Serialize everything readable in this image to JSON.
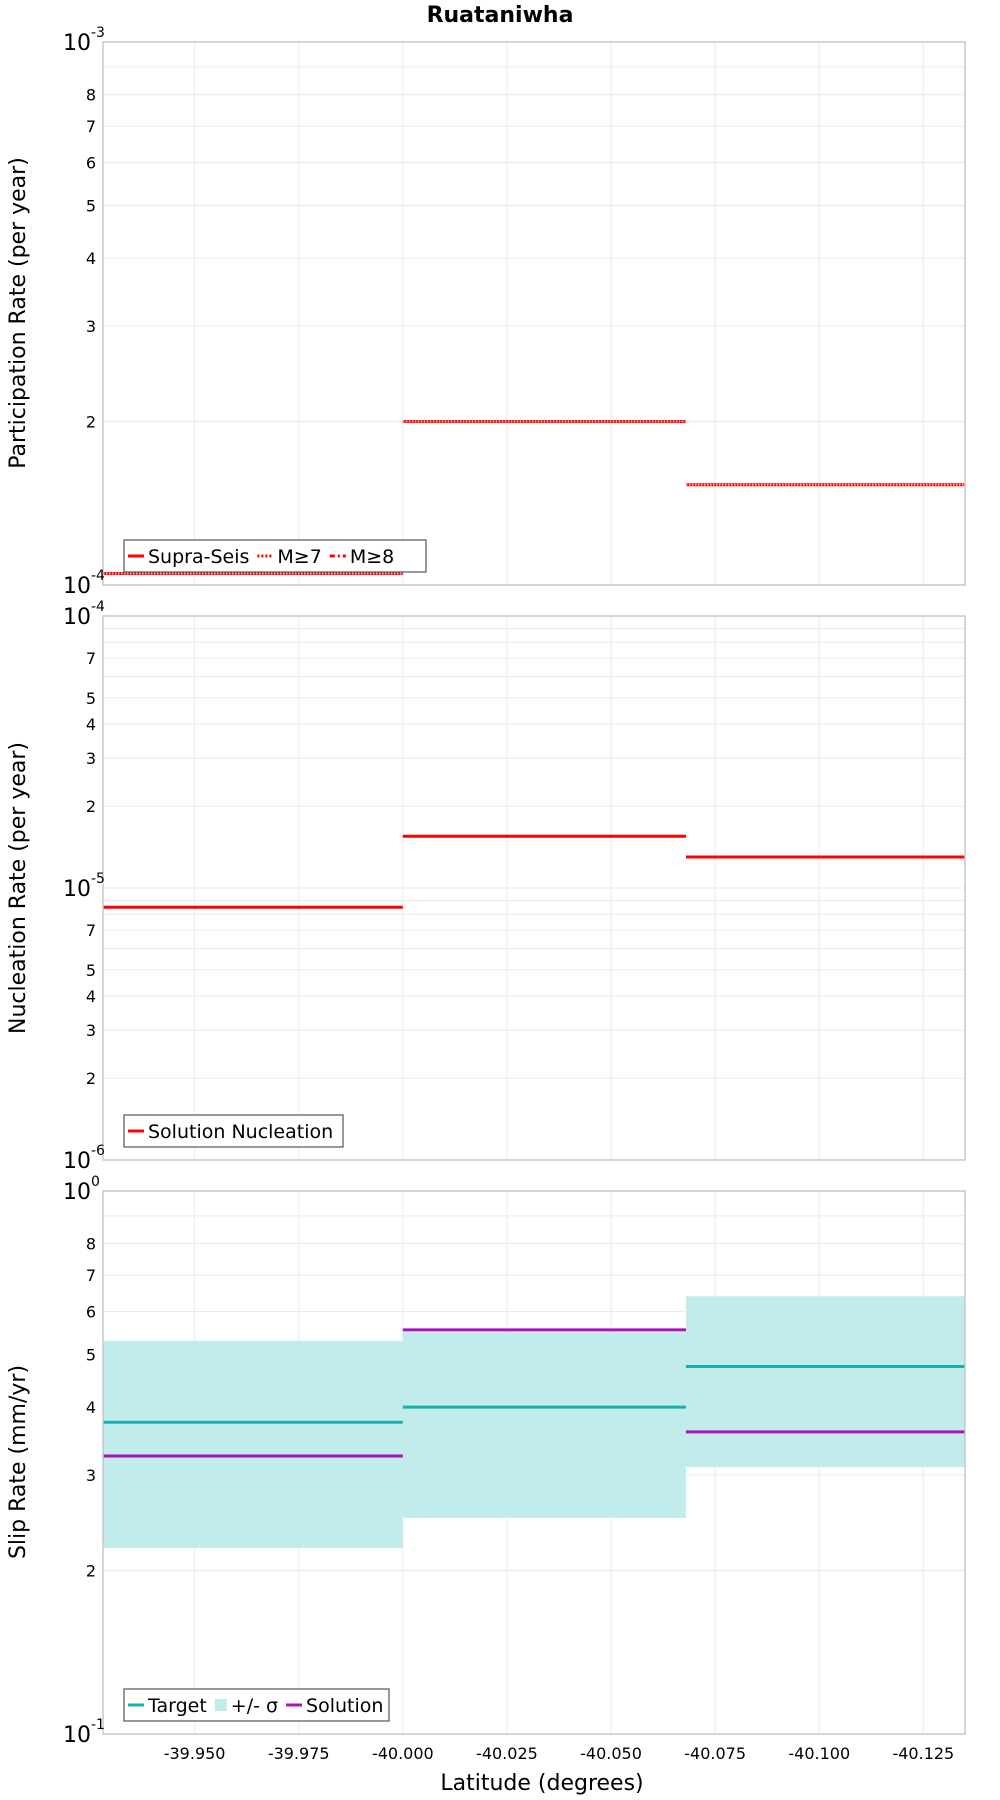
{
  "chart_data": [
    {
      "type": "line",
      "title": "Ruataniwha",
      "ylabel": "Participation Rate (per year)",
      "xlabel": "",
      "xlim": [
        -39.928,
        -40.135
      ],
      "ylim": [
        0.0001,
        0.001
      ],
      "yscale": "log",
      "grid": true,
      "legend_position": "bottom-left",
      "y_tick_labels": [
        {
          "value": 0.001,
          "mant": "10",
          "exp": "-3"
        },
        {
          "value": 0.0008,
          "mant": "8"
        },
        {
          "value": 0.0007,
          "mant": "7"
        },
        {
          "value": 0.0006,
          "mant": "6"
        },
        {
          "value": 0.0005,
          "mant": "5"
        },
        {
          "value": 0.0004,
          "mant": "4"
        },
        {
          "value": 0.0003,
          "mant": "3"
        },
        {
          "value": 0.0002,
          "mant": "2"
        },
        {
          "value": 0.0001,
          "mant": "10",
          "exp": "-4"
        }
      ],
      "series": [
        {
          "name": "Supra-Seis",
          "color": "#ff0000",
          "style": "solid",
          "segments": [
            {
              "x": [
                -39.928,
                -40.0
              ],
              "y": 0.000105
            },
            {
              "x": [
                -40.0,
                -40.068
              ],
              "y": 0.0002
            },
            {
              "x": [
                -40.068,
                -40.135
              ],
              "y": 0.000153
            }
          ]
        },
        {
          "name": "M≥7",
          "color": "#ff0000",
          "style": "dotted",
          "segments": [
            {
              "x": [
                -39.928,
                -40.0
              ],
              "y": 0.000105
            },
            {
              "x": [
                -40.0,
                -40.068
              ],
              "y": 0.0002
            },
            {
              "x": [
                -40.068,
                -40.135
              ],
              "y": 0.000153
            }
          ]
        },
        {
          "name": "M≥8",
          "color": "#ff0000",
          "style": "dashdot",
          "segments": []
        }
      ]
    },
    {
      "type": "line",
      "ylabel": "Nucleation Rate (per year)",
      "xlabel": "",
      "xlim": [
        -39.928,
        -40.135
      ],
      "ylim": [
        1e-06,
        0.0001
      ],
      "yscale": "log",
      "grid": true,
      "legend_position": "bottom-left",
      "y_tick_labels": [
        {
          "value": 0.0001,
          "mant": "10",
          "exp": "-4"
        },
        {
          "value": 7e-05,
          "mant": "7"
        },
        {
          "value": 5e-05,
          "mant": "5"
        },
        {
          "value": 4e-05,
          "mant": "4"
        },
        {
          "value": 3e-05,
          "mant": "3"
        },
        {
          "value": 2e-05,
          "mant": "2"
        },
        {
          "value": 1e-05,
          "mant": "10",
          "exp": "-5"
        },
        {
          "value": 7e-06,
          "mant": "7"
        },
        {
          "value": 5e-06,
          "mant": "5"
        },
        {
          "value": 4e-06,
          "mant": "4"
        },
        {
          "value": 3e-06,
          "mant": "3"
        },
        {
          "value": 2e-06,
          "mant": "2"
        },
        {
          "value": 1e-06,
          "mant": "10",
          "exp": "-6"
        }
      ],
      "series": [
        {
          "name": "Solution Nucleation",
          "color": "#ff0000",
          "style": "solid",
          "segments": [
            {
              "x": [
                -39.928,
                -40.0
              ],
              "y": 8.5e-06
            },
            {
              "x": [
                -40.0,
                -40.068
              ],
              "y": 1.55e-05
            },
            {
              "x": [
                -40.068,
                -40.135
              ],
              "y": 1.3e-05
            }
          ]
        }
      ]
    },
    {
      "type": "line",
      "ylabel": "Slip Rate (mm/yr)",
      "xlabel": "Latitude (degrees)",
      "xlim": [
        -39.928,
        -40.135
      ],
      "ylim": [
        0.1,
        1
      ],
      "yscale": "log",
      "grid": true,
      "legend_position": "bottom-left",
      "y_tick_labels": [
        {
          "value": 1,
          "mant": "10",
          "exp": "0"
        },
        {
          "value": 0.8,
          "mant": "8"
        },
        {
          "value": 0.7,
          "mant": "7"
        },
        {
          "value": 0.6,
          "mant": "6"
        },
        {
          "value": 0.5,
          "mant": "5"
        },
        {
          "value": 0.4,
          "mant": "4"
        },
        {
          "value": 0.3,
          "mant": "3"
        },
        {
          "value": 0.2,
          "mant": "2"
        },
        {
          "value": 0.1,
          "mant": "10",
          "exp": "-1"
        }
      ],
      "x_ticks": [
        -39.95,
        -39.975,
        -40.0,
        -40.025,
        -40.05,
        -40.075,
        -40.1,
        -40.125
      ],
      "x_tick_labels": [
        "-39.950",
        "-39.975",
        "-40.000",
        "-40.025",
        "-40.050",
        "-40.075",
        "-40.100",
        "-40.125"
      ],
      "series": [
        {
          "name": "Target",
          "color": "#1aafaf",
          "style": "solid",
          "segments": [
            {
              "x": [
                -39.928,
                -40.0
              ],
              "y": 0.375
            },
            {
              "x": [
                -40.0,
                -40.068
              ],
              "y": 0.4
            },
            {
              "x": [
                -40.068,
                -40.135
              ],
              "y": 0.475
            }
          ]
        },
        {
          "name": "+/- σ",
          "color": "#c2ebeb",
          "style": "band",
          "bands": [
            {
              "x": [
                -39.928,
                -40.0
              ],
              "low": 0.22,
              "high": 0.53
            },
            {
              "x": [
                -40.0,
                -40.068
              ],
              "low": 0.25,
              "high": 0.55
            },
            {
              "x": [
                -40.068,
                -40.135
              ],
              "low": 0.31,
              "high": 0.64
            }
          ]
        },
        {
          "name": "Solution",
          "color": "#a814b8",
          "style": "solid",
          "segments": [
            {
              "x": [
                -39.928,
                -40.0
              ],
              "y": 0.325
            },
            {
              "x": [
                -40.0,
                -40.068
              ],
              "y": 0.555
            },
            {
              "x": [
                -40.068,
                -40.135
              ],
              "y": 0.36
            }
          ]
        }
      ]
    }
  ]
}
